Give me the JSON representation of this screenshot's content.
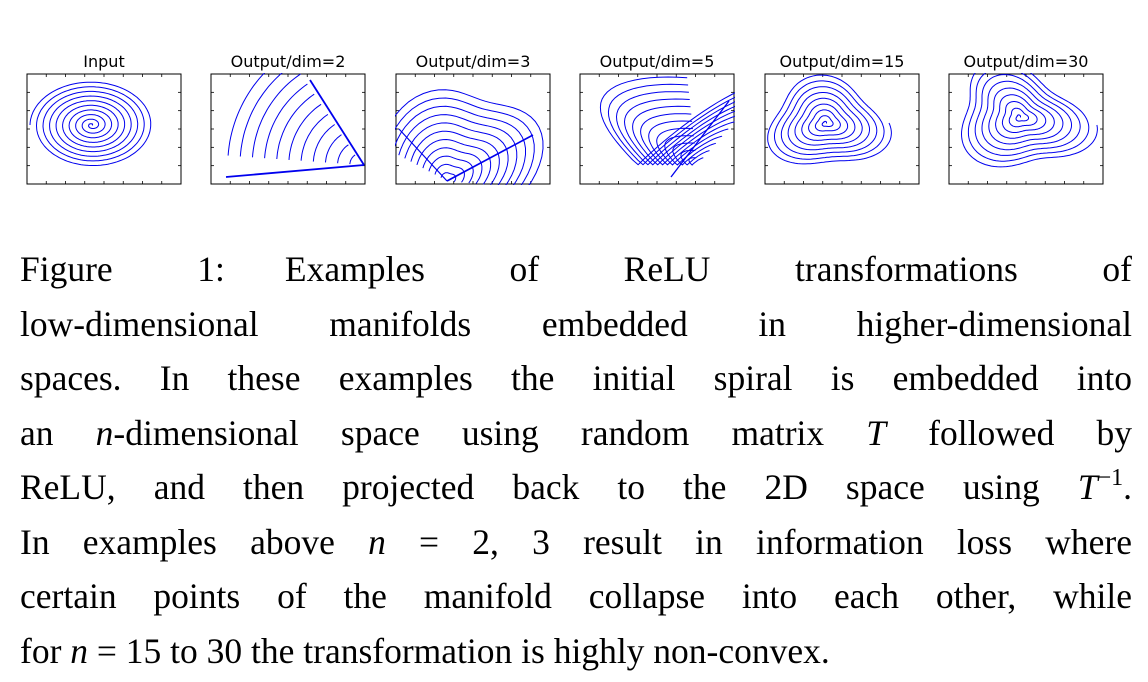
{
  "figure": {
    "panels": [
      {
        "title": "Input",
        "kind": "input"
      },
      {
        "title": "Output/dim=2",
        "kind": "dim2"
      },
      {
        "title": "Output/dim=3",
        "kind": "dim3"
      },
      {
        "title": "Output/dim=5",
        "kind": "dim5"
      },
      {
        "title": "Output/dim=15",
        "kind": "dim15"
      },
      {
        "title": "Output/dim=30",
        "kind": "dim30"
      }
    ],
    "curve_color": "#0000ee"
  },
  "caption": {
    "label": "Figure 1:",
    "line1_rest": "Examples of ReLU transformations of",
    "line2": "low-dimensional manifolds embedded in higher-dimensional",
    "line3": "spaces. In these examples the initial spiral is embedded into",
    "line4_a": "an ",
    "line4_n": "n",
    "line4_b": "-dimensional space using random matrix ",
    "line4_T": "T",
    "line4_c": " followed by",
    "line5_a": "ReLU, and then projected back to the 2D space using ",
    "line5_T": "T",
    "line5_sup": "−1",
    "line5_b": ".",
    "line6_a": "In examples above ",
    "line6_n": "n",
    "line6_b": " = 2, 3 result in information loss where",
    "line7": "certain points of the manifold collapse into each other, while",
    "line8_a": "for ",
    "line8_n": "n",
    "line8_b": " = 15 to 30 the transformation is highly non-convex."
  }
}
